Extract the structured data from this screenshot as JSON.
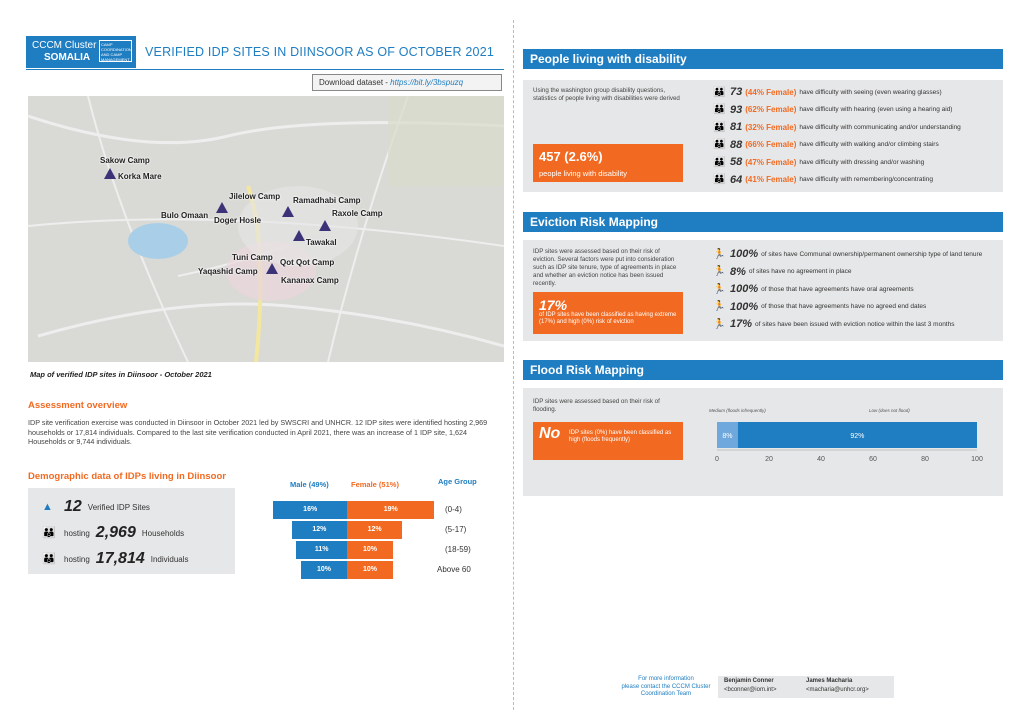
{
  "header": {
    "logo_line1": "CCCM Cluster",
    "logo_line2": "SOMALIA",
    "logo_subtext": "CAMP COORDINATION AND CAMP MANAGEMENT",
    "title": "VERIFIED IDP SITES IN DIINSOOR AS OF OCTOBER 2021",
    "download_label": "Download dataset - ",
    "download_link": "https://bit.ly/3bspuzq"
  },
  "map": {
    "caption": "Map of verified IDP sites in Diinsoor - October 2021",
    "camps": [
      "Sakow Camp",
      "Korka Mare",
      "Jilelow Camp",
      "Bulo Omaan",
      "Doger Hosle",
      "Ramadhabi Camp",
      "Raxole Camp",
      "Tawakal",
      "Tuni Camp",
      "Yaqashid Camp",
      "Qot Qot Camp",
      "Kananax Camp"
    ]
  },
  "assessment": {
    "heading": "Assessment overview",
    "text": "IDP site verification exercise was conducted in Diinsoor in October 2021 led by SWSCRI and UNHCR. 12 IDP sites were identified hosting 2,969 households or 17,814 individuals. Compared to the last site verification conducted in April 2021, there was an increase of 1 IDP site, 1,624 Households or 9,744 individuals."
  },
  "demographic": {
    "heading": "Demographic data of IDPs living in Diinsoor",
    "sites_value": "12",
    "sites_label": "Verified IDP Sites",
    "hh_prefix": "hosting",
    "hh_value": "2,969",
    "hh_label": "Households",
    "ind_prefix": "hosting",
    "ind_value": "17,814",
    "ind_label": "Individuals",
    "male_header": "Male (49%)",
    "female_header": "Female (51%)",
    "age_header": "Age Group",
    "rows": [
      {
        "male": "16%",
        "female": "19%",
        "age": "(0-4)",
        "m": 16,
        "f": 19
      },
      {
        "male": "12%",
        "female": "12%",
        "age": "(5-17)",
        "m": 12,
        "f": 12
      },
      {
        "male": "11%",
        "female": "10%",
        "age": "(18-59)",
        "m": 11,
        "f": 10
      },
      {
        "male": "10%",
        "female": "10%",
        "age": "Above 60",
        "m": 10,
        "f": 10
      }
    ]
  },
  "disability": {
    "heading": "People living with disability",
    "intro": "Using the washington group disability questions, statistics of people living with disabilities were derived",
    "total": "457 (2.6%)",
    "total_label": "people living with disability",
    "stats": [
      {
        "n": "73",
        "pct": "(44% Female)",
        "text": "have difficulty with seeing (even wearing glasses)"
      },
      {
        "n": "93",
        "pct": "(62% Female)",
        "text": "have difficulty with hearing (even using a hearing aid)"
      },
      {
        "n": "81",
        "pct": "(32% Female)",
        "text": "have difficulty with communicating and/or understanding"
      },
      {
        "n": "88",
        "pct": "(66% Female)",
        "text": "have difficulty with walking and/or climbing stairs"
      },
      {
        "n": "58",
        "pct": "(47% Female)",
        "text": "have difficulty with dressing and/or washing"
      },
      {
        "n": "64",
        "pct": "(41% Female)",
        "text": "have difficulty with remembering/concentrating"
      }
    ]
  },
  "eviction": {
    "heading": "Eviction Risk Mapping",
    "intro": "IDP sites were assessed based on their risk of eviction. Several factors were put into consideration such as IDP site tenure, type of agreements in place and whether an eviction notice has been issued recently.",
    "box_value": "17%",
    "box_text": "of IDP sites have been classified as having extreme (17%) and high (0%) risk of eviction",
    "stats": [
      {
        "n": "100%",
        "text": "of sites have Communal ownership/permanent ownership type of land tenure"
      },
      {
        "n": "8%",
        "text": "of sites have no agreement in place"
      },
      {
        "n": "100%",
        "text": "of those that have agreements have oral agreements"
      },
      {
        "n": "100%",
        "text": "of those that have agreements have no agreed end dates"
      },
      {
        "n": "17%",
        "text": "of sites have been issued with eviction notice within the last 3 months"
      }
    ]
  },
  "flood": {
    "heading": "Flood Risk Mapping",
    "intro": "IDP sites were assessed based on their risk of flooding.",
    "box_value": "No",
    "box_text": "IDP sites (0%) have been classified as high (floods frequently)"
  },
  "chart_data": {
    "type": "bar",
    "orientation": "horizontal-stacked",
    "categories": [
      ""
    ],
    "series": [
      {
        "name": "Medium (floods infrequently)",
        "values": [
          8
        ],
        "color": "#6fa8dc"
      },
      {
        "name": "Low (does not flood)",
        "values": [
          92
        ],
        "color": "#1f7dc1"
      }
    ],
    "data_labels": [
      "8%",
      "92%"
    ],
    "xlim": [
      0,
      100
    ],
    "xticks": [
      "0",
      "20",
      "40",
      "60",
      "80",
      "100"
    ]
  },
  "footer": {
    "info": [
      "For more information",
      "please contact the CCCM Cluster",
      "Coordination Team"
    ],
    "c1_name": "Benjamin Conner",
    "c1_email": "<bconner@iom.int>",
    "c2_name": "James Macharia",
    "c2_email": "<macharia@unhcr.org>"
  }
}
